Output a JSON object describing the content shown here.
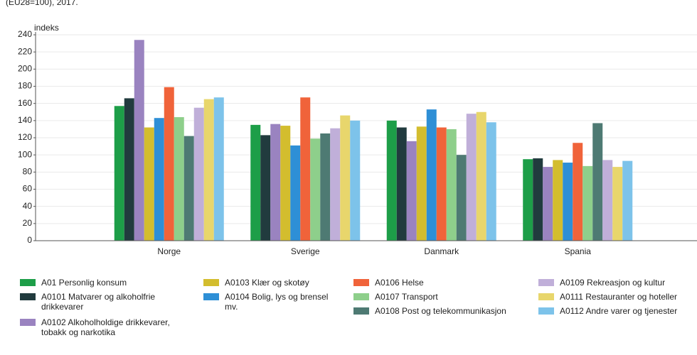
{
  "chart_data": {
    "type": "bar",
    "subtitle": "(EU28=100), 2017.",
    "y_label": "indeks",
    "categories": [
      "Norge",
      "Sverige",
      "Danmark",
      "Spania"
    ],
    "ylim": [
      0,
      240
    ],
    "yticks": [
      0,
      20,
      40,
      60,
      80,
      100,
      120,
      140,
      160,
      180,
      200,
      220,
      240
    ],
    "grid": true,
    "series": [
      {
        "name": "A01 Personlig konsum",
        "color": "#1d9e48",
        "values": [
          157,
          135,
          140,
          95
        ]
      },
      {
        "name": "A0101 Matvarer og alkoholfrie drikkevarer",
        "color": "#213b3e",
        "values": [
          166,
          123,
          132,
          96
        ]
      },
      {
        "name": "A0102 Alkoholholdige drikkevarer, tobakk og narkotika",
        "color": "#9a83c0",
        "values": [
          234,
          136,
          116,
          86
        ]
      },
      {
        "name": "A0103 Klær og skotøy",
        "color": "#d3bd2e",
        "values": [
          132,
          134,
          133,
          94
        ]
      },
      {
        "name": "A0104 Bolig, lys og brensel mv.",
        "color": "#2e8fd6",
        "values": [
          143,
          111,
          153,
          91
        ]
      },
      {
        "name": "A0106 Helse",
        "color": "#f0633a",
        "values": [
          179,
          167,
          132,
          114
        ]
      },
      {
        "name": "A0107 Transport",
        "color": "#8ecf8b",
        "values": [
          144,
          119,
          130,
          87
        ]
      },
      {
        "name": "A0108 Post og telekommunikasjon",
        "color": "#4e7a73",
        "values": [
          122,
          125,
          100,
          137
        ]
      },
      {
        "name": "A0109 Rekreasjon og kultur",
        "color": "#c0afd9",
        "values": [
          155,
          131,
          148,
          94
        ]
      },
      {
        "name": "A0111 Restauranter og hoteller",
        "color": "#e8d66c",
        "values": [
          165,
          146,
          150,
          86
        ]
      },
      {
        "name": "A0112 Andre varer og tjenester",
        "color": "#7dc3ea",
        "values": [
          167,
          140,
          138,
          93
        ]
      }
    ]
  }
}
